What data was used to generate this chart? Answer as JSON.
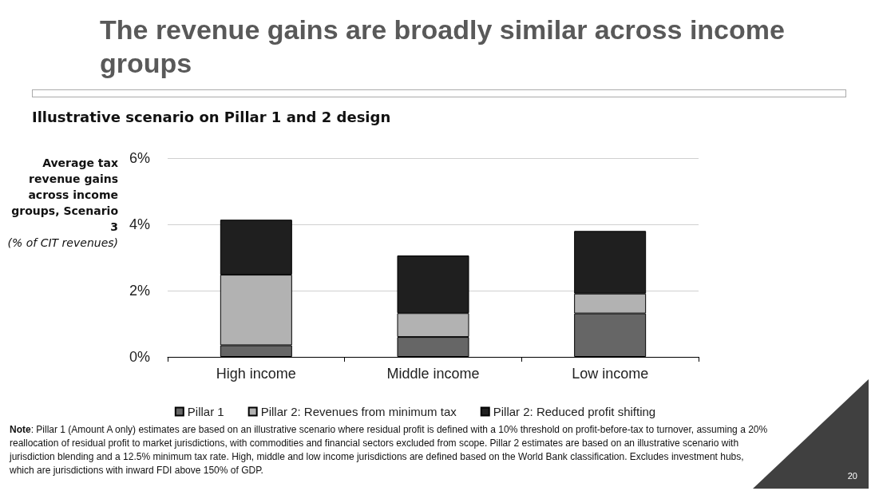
{
  "chart_data": {
    "type": "bar",
    "title": "The revenue gains are broadly similar across income groups",
    "subtitle": "Illustrative scenario on Pillar 1 and 2 design",
    "ylabel": "Average tax revenue gains across income groups, Scenario 3\n(% of CIT revenues)",
    "categories": [
      "High income",
      "Middle income",
      "Low income"
    ],
    "series": [
      {
        "name": "Pillar 1",
        "color": "#666666",
        "values": [
          0.35,
          0.6,
          1.31
        ]
      },
      {
        "name": "Pillar 2: Revenues from minimum tax",
        "color": "#b2b2b2",
        "values": [
          2.13,
          0.72,
          0.6
        ]
      },
      {
        "name": "Pillar 2: Reduced profit shifting",
        "color": "#1f1f1f",
        "values": [
          1.66,
          1.74,
          1.89
        ]
      }
    ],
    "stacked": true,
    "ylim": [
      0,
      6
    ],
    "yticks": [
      {
        "value": 0,
        "label": "0%"
      },
      {
        "value": 2,
        "label": "2%"
      },
      {
        "value": 4,
        "label": "4%"
      },
      {
        "value": 6,
        "label": "6%"
      }
    ],
    "grid": "y",
    "legend": "bottom",
    "annotations": [
      "Note: Pillar 1 (Amount A only) estimates are based on an illustrative scenario where residual profit is defined with a 10% threshold on profit-before-tax to turnover, assuming a 20% reallocation of residual profit to market jurisdictions, with commodities and financial sectors excluded from scope. Pillar 2 estimates are based on an illustrative scenario with jurisdiction blending and a 12.5% minimum tax rate.  High, middle and low income jurisdictions are defined based on the World Bank classification. Excludes investment hubs, which are jurisdictions with inward FDI above 150% of GDP.",
      "20"
    ]
  }
}
